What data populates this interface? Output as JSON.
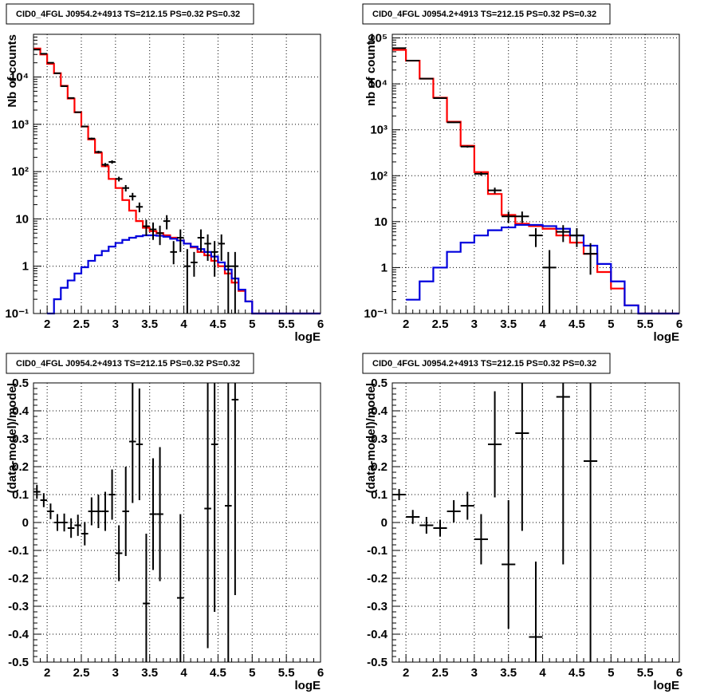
{
  "chart_data": [
    {
      "type": "line",
      "title": "CID0_4FGL J0954.2+4913 TS=212.15 PS=0.32 PS=0.32",
      "xlabel": "logE",
      "ylabel": "Nb of counts",
      "xlim": [
        1.8,
        6.0
      ],
      "ylim": [
        0.1,
        80000
      ],
      "yscale": "log",
      "grid": true,
      "xticks": [
        "2",
        "2.5",
        "3",
        "3.5",
        "4",
        "4.5",
        "5",
        "5.5",
        "6"
      ],
      "xtick_values": [
        2,
        2.5,
        3,
        3.5,
        4,
        4.5,
        5,
        5.5,
        6
      ],
      "yticks": [
        "10⁻¹",
        "1",
        "10",
        "10²",
        "10³",
        "10⁴"
      ],
      "ytick_values": [
        0.1,
        1,
        10,
        100,
        1000,
        10000
      ],
      "series": [
        {
          "color": "#ff0000",
          "style": "step",
          "bin_width": 0.1,
          "x": [
            1.85,
            1.95,
            2.05,
            2.15,
            2.25,
            2.35,
            2.45,
            2.55,
            2.65,
            2.75,
            2.85,
            2.95,
            3.05,
            3.15,
            3.25,
            3.35,
            3.45,
            3.55,
            3.65,
            3.75,
            3.85,
            3.95,
            4.05,
            4.15,
            4.25,
            4.35,
            4.45,
            4.55,
            4.65,
            4.75,
            4.85,
            4.95,
            5.05,
            5.15,
            5.25,
            5.35,
            5.45,
            5.55,
            5.65,
            5.75,
            5.85,
            5.95
          ],
          "values": [
            40000,
            30000,
            19000,
            12000,
            6500,
            3500,
            1800,
            900,
            480,
            250,
            130,
            70,
            45,
            25,
            15,
            9,
            6.5,
            5.5,
            5,
            4.5,
            4,
            3.5,
            3,
            2.5,
            2,
            1.7,
            1.3,
            1,
            0.7,
            0.45,
            0.3,
            0.18,
            0.1,
            0.1,
            0.1,
            0.1,
            0.1,
            0.1,
            0.1,
            0.1,
            0.1,
            0.1
          ]
        },
        {
          "color": "#0000dd",
          "style": "step",
          "bin_width": 0.1,
          "x": [
            2.05,
            2.15,
            2.25,
            2.35,
            2.45,
            2.55,
            2.65,
            2.75,
            2.85,
            2.95,
            3.05,
            3.15,
            3.25,
            3.35,
            3.45,
            3.55,
            3.65,
            3.75,
            3.85,
            3.95,
            4.05,
            4.15,
            4.25,
            4.35,
            4.45,
            4.55,
            4.65,
            4.75,
            4.85,
            4.95,
            5.05,
            5.15,
            5.25,
            5.35,
            5.45,
            5.55,
            5.65,
            5.75,
            5.85,
            5.95
          ],
          "values": [
            0.1,
            0.2,
            0.35,
            0.5,
            0.7,
            0.95,
            1.3,
            1.7,
            2.1,
            2.6,
            3.1,
            3.6,
            4.0,
            4.3,
            4.5,
            4.5,
            4.4,
            4.2,
            3.8,
            3.5,
            3.0,
            2.6,
            2.3,
            2.0,
            1.6,
            1.2,
            0.85,
            0.55,
            0.32,
            0.18,
            0.1,
            0.1,
            0.1,
            0.1,
            0.1,
            0.1,
            0.1,
            0.1,
            0.1,
            0.1
          ]
        },
        {
          "color": "#000000",
          "style": "points",
          "xerr": 0.05,
          "x": [
            1.85,
            1.95,
            2.05,
            2.15,
            2.25,
            2.35,
            2.45,
            2.55,
            2.65,
            2.75,
            2.85,
            2.95,
            3.05,
            3.15,
            3.25,
            3.35,
            3.45,
            3.55,
            3.65,
            3.75,
            3.85,
            3.95,
            4.05,
            4.15,
            4.25,
            4.35,
            4.45,
            4.55,
            4.65,
            4.75
          ],
          "values": [
            38000,
            31000,
            20000,
            12000,
            6400,
            3600,
            1800,
            900,
            500,
            260,
            140,
            160,
            70,
            45,
            30,
            18,
            7,
            6,
            5,
            9,
            2,
            4,
            1,
            1.2,
            4,
            3,
            2,
            3,
            1,
            1
          ],
          "yerr_low": [
            200,
            180,
            140,
            110,
            80,
            60,
            42,
            30,
            22,
            16,
            12,
            13,
            8,
            7,
            5.5,
            4.2,
            2.6,
            2.4,
            2.2,
            3,
            0.9,
            2,
            0.9,
            0.6,
            2,
            1.7,
            1.4,
            1.7,
            0.9,
            0.9
          ],
          "yerr_high": [
            200,
            180,
            140,
            110,
            80,
            60,
            42,
            30,
            22,
            16,
            12,
            13,
            8,
            7,
            5.5,
            4.2,
            2.6,
            2.4,
            2.2,
            3,
            1.4,
            2,
            1.3,
            0.8,
            2,
            1.7,
            1.4,
            1.7,
            1,
            1
          ]
        }
      ]
    },
    {
      "type": "line",
      "title": "CID0_4FGL J0954.2+4913 TS=212.15 PS=0.32 PS=0.32",
      "xlabel": "logE",
      "ylabel": "nb of counts",
      "xlim": [
        1.8,
        6.0
      ],
      "ylim": [
        0.1,
        120000
      ],
      "yscale": "log",
      "grid": true,
      "xticks": [
        "2",
        "2.5",
        "3",
        "3.5",
        "4",
        "4.5",
        "5",
        "5.5",
        "6"
      ],
      "xtick_values": [
        2,
        2.5,
        3,
        3.5,
        4,
        4.5,
        5,
        5.5,
        6
      ],
      "yticks": [
        "10⁻¹",
        "1",
        "10",
        "10²",
        "10³",
        "10⁴",
        "10⁵"
      ],
      "ytick_values": [
        0.1,
        1,
        10,
        100,
        1000,
        10000,
        100000
      ],
      "series": [
        {
          "color": "#ff0000",
          "style": "step",
          "bin_width": 0.2,
          "x": [
            1.9,
            2.1,
            2.3,
            2.5,
            2.7,
            2.9,
            3.1,
            3.3,
            3.5,
            3.7,
            3.9,
            4.1,
            4.3,
            4.5,
            4.7,
            4.9,
            5.1,
            5.3,
            5.5,
            5.7,
            5.9
          ],
          "values": [
            55000,
            32000,
            13000,
            5000,
            1500,
            450,
            120,
            40,
            14,
            9,
            8,
            7,
            5,
            3.5,
            2,
            0.8,
            0.35,
            0.15,
            0.1,
            0.1,
            0.1
          ]
        },
        {
          "color": "#0000dd",
          "style": "step",
          "bin_width": 0.2,
          "x": [
            2.1,
            2.3,
            2.5,
            2.7,
            2.9,
            3.1,
            3.3,
            3.5,
            3.7,
            3.9,
            4.1,
            4.3,
            4.5,
            4.7,
            4.9,
            5.1,
            5.3,
            5.5,
            5.7,
            5.9
          ],
          "values": [
            0.2,
            0.5,
            1,
            2.2,
            3.5,
            5,
            6.5,
            7.5,
            8.5,
            8.5,
            8,
            7,
            5,
            3,
            1.2,
            0.5,
            0.15,
            0.1,
            0.1,
            0.1
          ]
        },
        {
          "color": "#000000",
          "style": "points",
          "xerr": 0.1,
          "x": [
            1.9,
            2.1,
            2.3,
            2.5,
            2.7,
            2.9,
            3.1,
            3.3,
            3.5,
            3.7,
            3.9,
            4.1,
            4.3,
            4.5,
            4.7
          ],
          "values": [
            60000,
            32000,
            13000,
            4900,
            1450,
            430,
            110,
            48,
            13,
            13,
            5,
            1,
            6,
            5,
            2
          ],
          "yerr_low": [
            250,
            180,
            115,
            70,
            38,
            21,
            10,
            7,
            3.6,
            3.6,
            2.2,
            0.9,
            2.4,
            2.2,
            1.3
          ],
          "yerr_high": [
            250,
            180,
            115,
            70,
            38,
            21,
            10,
            7,
            3.6,
            3.6,
            2.2,
            1.4,
            2.4,
            2.2,
            1.4
          ]
        }
      ]
    },
    {
      "type": "scatter",
      "title": "CID0_4FGL J0954.2+4913 TS=212.15 PS=0.32 PS=0.32",
      "xlabel": "logE",
      "ylabel": "(data-model)/model",
      "xlim": [
        1.8,
        6.0
      ],
      "ylim": [
        -0.5,
        0.5
      ],
      "grid": true,
      "xticks": [
        "2",
        "2.5",
        "3",
        "3.5",
        "4",
        "4.5",
        "5",
        "5.5",
        "6"
      ],
      "xtick_values": [
        2,
        2.5,
        3,
        3.5,
        4,
        4.5,
        5,
        5.5,
        6
      ],
      "yticks": [
        "-0.5",
        "-0.4",
        "-0.3",
        "-0.2",
        "-0.1",
        "0",
        "0.1",
        "0.2",
        "0.3",
        "0.4",
        "0.5"
      ],
      "ytick_values": [
        -0.5,
        -0.4,
        -0.3,
        -0.2,
        -0.1,
        0,
        0.1,
        0.2,
        0.3,
        0.4,
        0.5
      ],
      "series": [
        {
          "color": "#000000",
          "style": "points",
          "xerr": 0.05,
          "x": [
            1.85,
            1.95,
            2.05,
            2.15,
            2.25,
            2.35,
            2.45,
            2.55,
            2.65,
            2.75,
            2.85,
            2.95,
            3.05,
            3.15,
            3.25,
            3.35,
            3.45,
            3.55,
            3.65,
            3.95,
            4.35,
            4.45,
            4.65,
            4.75
          ],
          "values": [
            0.11,
            0.08,
            0.04,
            0.0,
            0.0,
            -0.02,
            -0.01,
            -0.04,
            0.04,
            0.04,
            0.04,
            0.1,
            -0.11,
            0.04,
            0.29,
            0.28,
            -0.29,
            0.03,
            0.03,
            -0.27,
            0.05,
            0.28,
            0.06,
            0.44
          ],
          "yerr": [
            0.025,
            0.025,
            0.028,
            0.03,
            0.032,
            0.035,
            0.038,
            0.042,
            0.05,
            0.06,
            0.07,
            0.09,
            0.1,
            0.16,
            0.22,
            0.2,
            0.25,
            0.2,
            0.24,
            0.3,
            0.5,
            0.6,
            0.65,
            0.7
          ]
        }
      ]
    },
    {
      "type": "scatter",
      "title": "CID0_4FGL J0954.2+4913 TS=212.15 PS=0.32 PS=0.32",
      "xlabel": "logE",
      "ylabel": "(data-model)/model",
      "xlim": [
        1.8,
        6.0
      ],
      "ylim": [
        -0.5,
        0.5
      ],
      "grid": true,
      "xticks": [
        "2",
        "2.5",
        "3",
        "3.5",
        "4",
        "4.5",
        "5",
        "5.5",
        "6"
      ],
      "xtick_values": [
        2,
        2.5,
        3,
        3.5,
        4,
        4.5,
        5,
        5.5,
        6
      ],
      "yticks": [
        "-0.5",
        "-0.4",
        "-0.3",
        "-0.2",
        "-0.1",
        "0",
        "0.1",
        "0.2",
        "0.3",
        "0.4",
        "0.5"
      ],
      "ytick_values": [
        -0.5,
        -0.4,
        -0.3,
        -0.2,
        -0.1,
        0,
        0.1,
        0.2,
        0.3,
        0.4,
        0.5
      ],
      "series": [
        {
          "color": "#000000",
          "style": "points",
          "xerr": 0.1,
          "x": [
            1.9,
            2.1,
            2.3,
            2.5,
            2.7,
            2.9,
            3.1,
            3.3,
            3.5,
            3.7,
            3.9,
            4.3,
            4.7
          ],
          "values": [
            0.1,
            0.02,
            -0.01,
            -0.02,
            0.04,
            0.06,
            -0.06,
            0.28,
            -0.15,
            0.32,
            -0.41,
            0.45,
            0.22
          ],
          "yerr": [
            0.02,
            0.025,
            0.03,
            0.03,
            0.04,
            0.05,
            0.09,
            0.19,
            0.23,
            0.35,
            0.27,
            0.6,
            0.9
          ]
        }
      ]
    }
  ]
}
